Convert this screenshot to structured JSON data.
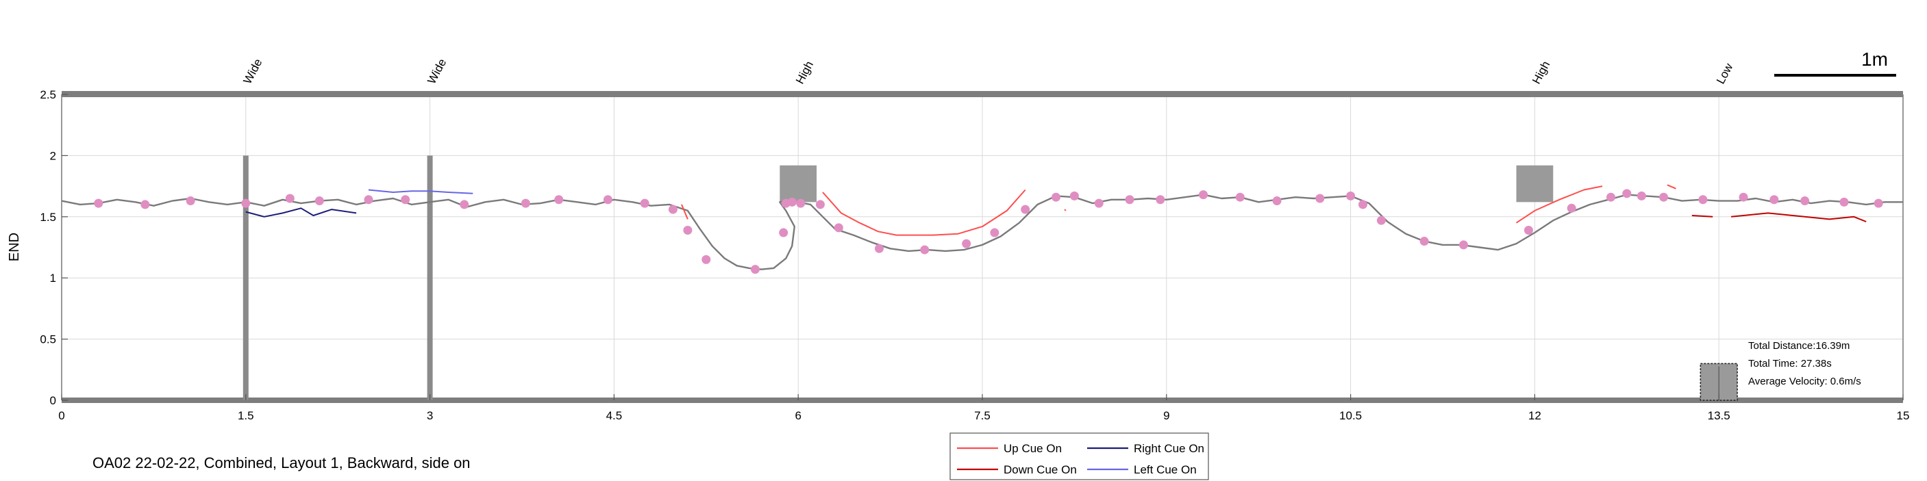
{
  "chart_data": {
    "type": "line",
    "xlabel": "",
    "ylabel": "END",
    "xlim": [
      0,
      15
    ],
    "ylim": [
      0,
      2.5
    ],
    "x_ticks": [
      "0",
      "1.5",
      "3",
      "4.5",
      "6",
      "7.5",
      "9",
      "10.5",
      "12",
      "13.5",
      "15"
    ],
    "y_ticks": [
      "0",
      "0.5",
      "1",
      "1.5",
      "2",
      "2.5"
    ],
    "grid": true,
    "scale_bar_label": "1m",
    "caption": "OA02 22-02-22, Combined, Layout 1, Backward, side on",
    "obstacles": [
      {
        "label": "Wide",
        "x": 1.5,
        "type": "pole",
        "y_top": 2.0
      },
      {
        "label": "Wide",
        "x": 3.0,
        "type": "pole",
        "y_top": 2.0
      },
      {
        "label": "High",
        "x": 6.0,
        "type": "box",
        "y_bottom": 1.62,
        "y_top": 1.92,
        "width": 0.3
      },
      {
        "label": "High",
        "x": 12.0,
        "type": "box",
        "y_bottom": 1.62,
        "y_top": 1.92,
        "width": 0.3
      },
      {
        "label": "Low",
        "x": 13.5,
        "type": "box",
        "y_bottom": 0.0,
        "y_top": 0.3,
        "width": 0.3
      }
    ],
    "trajectory": {
      "name": "",
      "color": "#7a7a7a",
      "x": [
        0,
        0.15,
        0.3,
        0.45,
        0.6,
        0.75,
        0.9,
        1.05,
        1.2,
        1.35,
        1.5,
        1.65,
        1.8,
        1.95,
        2.1,
        2.25,
        2.4,
        2.55,
        2.7,
        2.85,
        3.0,
        3.15,
        3.3,
        3.45,
        3.6,
        3.75,
        3.9,
        4.05,
        4.2,
        4.35,
        4.5,
        4.65,
        4.8,
        4.95,
        5.1,
        5.2,
        5.3,
        5.4,
        5.5,
        5.6,
        5.7,
        5.8,
        5.9,
        5.95,
        5.97,
        5.9,
        5.85,
        5.9,
        6.0,
        6.1,
        6.2,
        6.3,
        6.45,
        6.6,
        6.75,
        6.9,
        7.05,
        7.2,
        7.35,
        7.5,
        7.65,
        7.8,
        7.95,
        8.1,
        8.25,
        8.4,
        8.55,
        8.7,
        8.85,
        9.0,
        9.15,
        9.3,
        9.45,
        9.6,
        9.75,
        9.9,
        10.05,
        10.2,
        10.35,
        10.5,
        10.65,
        10.8,
        10.95,
        11.1,
        11.25,
        11.4,
        11.55,
        11.7,
        11.85,
        12.0,
        12.15,
        12.3,
        12.45,
        12.6,
        12.75,
        12.9,
        13.05,
        13.2,
        13.35,
        13.5,
        13.65,
        13.8,
        13.95,
        14.1,
        14.25,
        14.4,
        14.55,
        14.7,
        14.85,
        15.0
      ],
      "y": [
        1.63,
        1.6,
        1.61,
        1.64,
        1.62,
        1.59,
        1.63,
        1.65,
        1.62,
        1.6,
        1.62,
        1.59,
        1.64,
        1.61,
        1.63,
        1.64,
        1.6,
        1.63,
        1.65,
        1.6,
        1.62,
        1.64,
        1.58,
        1.62,
        1.64,
        1.6,
        1.61,
        1.64,
        1.62,
        1.6,
        1.64,
        1.62,
        1.59,
        1.6,
        1.55,
        1.4,
        1.26,
        1.16,
        1.1,
        1.08,
        1.07,
        1.08,
        1.16,
        1.26,
        1.42,
        1.55,
        1.62,
        1.63,
        1.62,
        1.6,
        1.5,
        1.4,
        1.35,
        1.29,
        1.24,
        1.22,
        1.23,
        1.22,
        1.23,
        1.27,
        1.34,
        1.45,
        1.6,
        1.67,
        1.66,
        1.61,
        1.64,
        1.64,
        1.65,
        1.64,
        1.66,
        1.68,
        1.65,
        1.66,
        1.62,
        1.64,
        1.66,
        1.65,
        1.66,
        1.67,
        1.61,
        1.46,
        1.36,
        1.3,
        1.27,
        1.27,
        1.25,
        1.23,
        1.28,
        1.37,
        1.47,
        1.54,
        1.6,
        1.64,
        1.68,
        1.67,
        1.66,
        1.63,
        1.64,
        1.63,
        1.63,
        1.65,
        1.62,
        1.64,
        1.61,
        1.63,
        1.62,
        1.6,
        1.62,
        1.62
      ],
      "marker_x": [
        0.3,
        0.68,
        1.05,
        1.5,
        1.86,
        2.1,
        2.5,
        2.8,
        3.28,
        3.78,
        4.05,
        4.45,
        4.75,
        4.98,
        5.1,
        5.25,
        5.65,
        5.9,
        5.95,
        5.88,
        6.02,
        6.18,
        6.33,
        6.66,
        7.03,
        7.37,
        7.6,
        7.85,
        8.1,
        8.25,
        8.45,
        8.7,
        8.95,
        9.3,
        9.6,
        9.9,
        10.25,
        10.5,
        10.6,
        10.75,
        11.1,
        11.42,
        11.95,
        12.3,
        12.62,
        12.75,
        12.87,
        13.05,
        13.37,
        13.7,
        13.95,
        14.2,
        14.52,
        14.8
      ],
      "marker_y": [
        1.61,
        1.6,
        1.63,
        1.61,
        1.65,
        1.63,
        1.64,
        1.64,
        1.6,
        1.61,
        1.64,
        1.64,
        1.61,
        1.56,
        1.39,
        1.15,
        1.07,
        1.61,
        1.62,
        1.37,
        1.61,
        1.6,
        1.41,
        1.24,
        1.23,
        1.28,
        1.37,
        1.56,
        1.66,
        1.67,
        1.61,
        1.64,
        1.64,
        1.68,
        1.66,
        1.63,
        1.65,
        1.67,
        1.6,
        1.47,
        1.3,
        1.27,
        1.39,
        1.57,
        1.66,
        1.69,
        1.67,
        1.66,
        1.64,
        1.66,
        1.64,
        1.63,
        1.62,
        1.61
      ]
    },
    "cue_segments": [
      {
        "cue": "Right Cue On",
        "x": [
          1.5,
          1.65,
          1.8,
          1.95,
          2.05,
          2.2,
          2.4
        ],
        "y": [
          1.54,
          1.5,
          1.53,
          1.57,
          1.51,
          1.56,
          1.53
        ]
      },
      {
        "cue": "Left Cue On",
        "x": [
          2.5,
          2.7,
          2.85,
          3.0,
          3.15,
          3.35
        ],
        "y": [
          1.72,
          1.7,
          1.71,
          1.71,
          1.7,
          1.69
        ]
      },
      {
        "cue": "Up Cue On",
        "x": [
          5.05,
          5.1
        ],
        "y": [
          1.6,
          1.48
        ]
      },
      {
        "cue": "Up Cue On",
        "x": [
          6.2,
          6.35,
          6.5,
          6.65,
          6.8,
          6.95,
          7.1,
          7.3,
          7.5,
          7.7,
          7.85
        ],
        "y": [
          1.7,
          1.53,
          1.45,
          1.38,
          1.35,
          1.35,
          1.35,
          1.36,
          1.42,
          1.55,
          1.72
        ]
      },
      {
        "cue": "Up Cue On",
        "x": [
          8.17,
          8.18
        ],
        "y": [
          1.56,
          1.55
        ]
      },
      {
        "cue": "Up Cue On",
        "x": [
          11.85,
          12.0,
          12.2,
          12.4,
          12.55
        ],
        "y": [
          1.45,
          1.55,
          1.64,
          1.72,
          1.75
        ]
      },
      {
        "cue": "Up Cue On",
        "x": [
          13.08,
          13.15
        ],
        "y": [
          1.76,
          1.73
        ]
      },
      {
        "cue": "Down Cue On",
        "x": [
          13.28,
          13.45
        ],
        "y": [
          1.51,
          1.5
        ]
      },
      {
        "cue": "Down Cue On",
        "x": [
          13.6,
          13.9,
          14.2,
          14.4,
          14.6,
          14.7
        ],
        "y": [
          1.5,
          1.53,
          1.5,
          1.48,
          1.5,
          1.46
        ]
      }
    ],
    "legend": [
      {
        "label": "Up Cue On",
        "color": "#ff4d4d"
      },
      {
        "label": "Right Cue On",
        "color": "#1c1c7a"
      },
      {
        "label": "Down Cue On",
        "color": "#c00000"
      },
      {
        "label": "Left Cue On",
        "color": "#6666e6"
      }
    ],
    "legend_position": "bottom-center",
    "stats": [
      "Total Distance:16.39m",
      "Total Time: 27.38s",
      "Average Velocity: 0.6m/s"
    ]
  }
}
